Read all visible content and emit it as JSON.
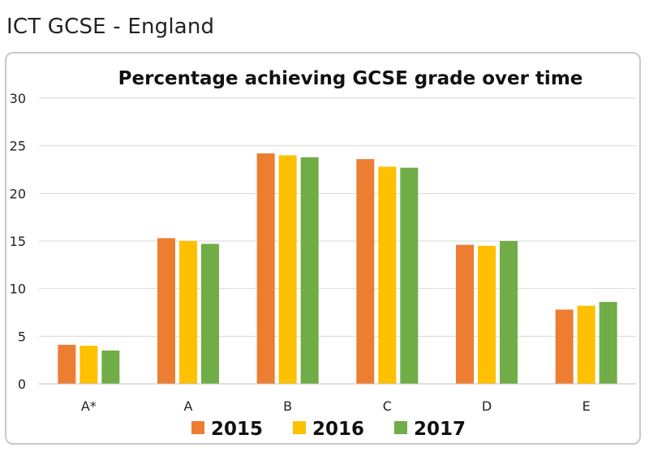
{
  "page": {
    "heading": "ICT GCSE - England"
  },
  "chart_data": {
    "type": "bar",
    "title": "Percentage achieving GCSE grade over time",
    "xlabel": "",
    "ylabel": "",
    "categories": [
      "A*",
      "A",
      "B",
      "C",
      "D",
      "E"
    ],
    "series": [
      {
        "name": "2015",
        "color": "#ed7d31",
        "values": [
          4.1,
          15.3,
          24.2,
          23.6,
          14.6,
          7.8
        ]
      },
      {
        "name": "2016",
        "color": "#ffc000",
        "values": [
          4.0,
          15.0,
          24.0,
          22.8,
          14.5,
          8.2
        ]
      },
      {
        "name": "2017",
        "color": "#70ad47",
        "values": [
          3.5,
          14.7,
          23.8,
          22.7,
          15.0,
          8.6
        ]
      }
    ],
    "ylim": [
      0,
      30
    ],
    "yticks": [
      0,
      5,
      10,
      15,
      20,
      25,
      30
    ],
    "grid": true,
    "legend": "bottom"
  }
}
